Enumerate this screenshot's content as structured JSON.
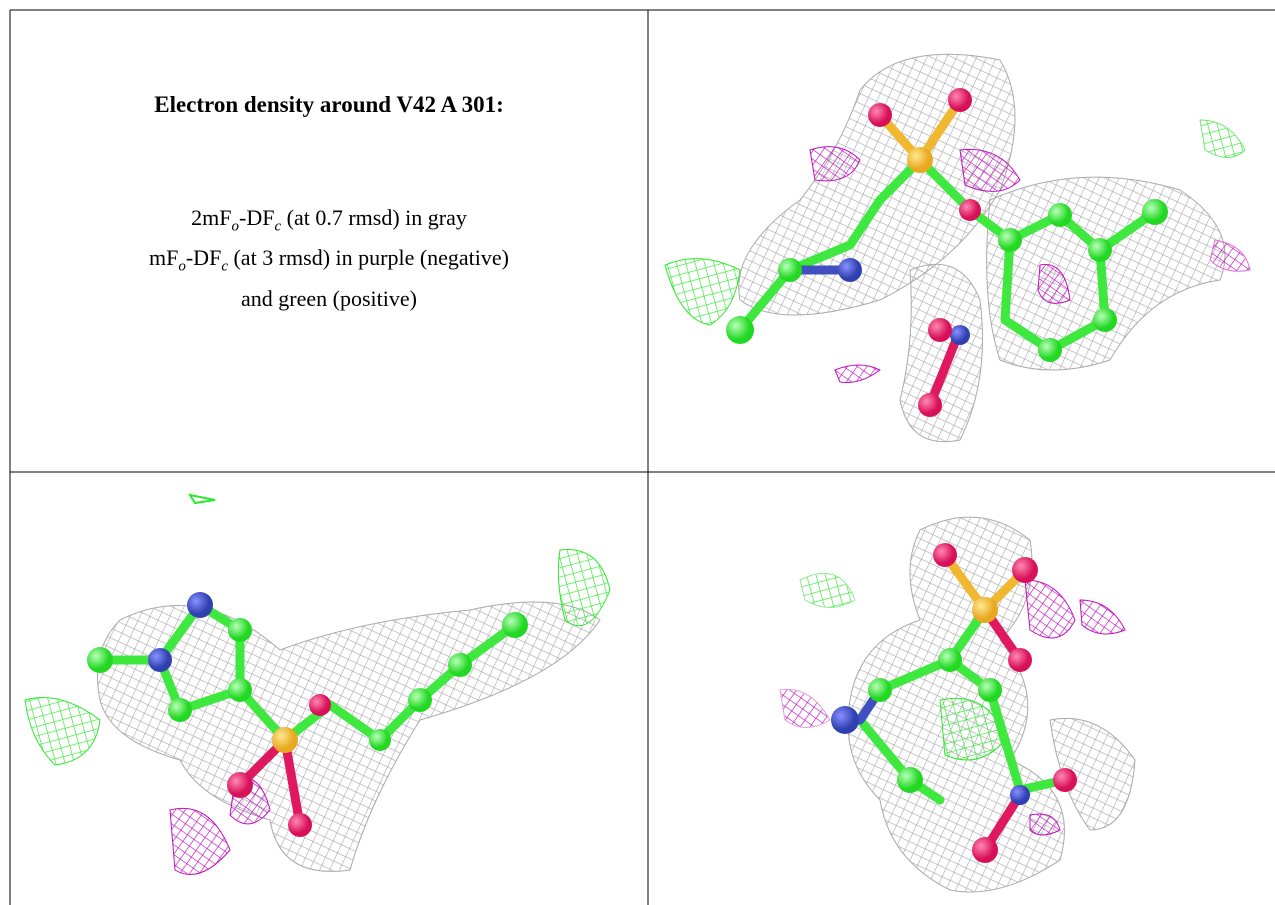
{
  "header": {
    "title": "Electron density around V42 A 301:"
  },
  "legend": {
    "lines": [
      [
        "2mF",
        "o",
        "-DF",
        "c",
        " (at 0.7 rmsd) in gray"
      ],
      [
        "mF",
        "o",
        "-DF",
        "c",
        " (at 3 rmsd) in purple (negative)"
      ],
      [
        "and green (positive)"
      ]
    ]
  }
}
